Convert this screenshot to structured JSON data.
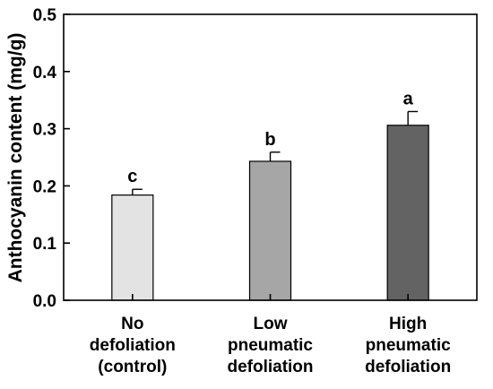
{
  "chart_data": {
    "type": "bar",
    "categories": [
      [
        "No",
        "defoliation",
        "(control)"
      ],
      [
        "Low",
        "pneumatic",
        "defoliation"
      ],
      [
        "High",
        "pneumatic",
        "defoliation"
      ]
    ],
    "values": [
      0.184,
      0.243,
      0.306
    ],
    "errors": [
      0.01,
      0.016,
      0.024
    ],
    "significance_letters": [
      "c",
      "b",
      "a"
    ],
    "bar_colors": [
      "#e3e3e3",
      "#a6a6a6",
      "#636363"
    ],
    "ylabel": "Anthocyanin content (mg/g)",
    "xlabel": "",
    "title": "",
    "ylim": [
      0,
      0.5
    ],
    "yticks": [
      "0.0",
      "0.1",
      "0.2",
      "0.3",
      "0.4",
      "0.5"
    ],
    "grid": false,
    "legend": "none"
  }
}
